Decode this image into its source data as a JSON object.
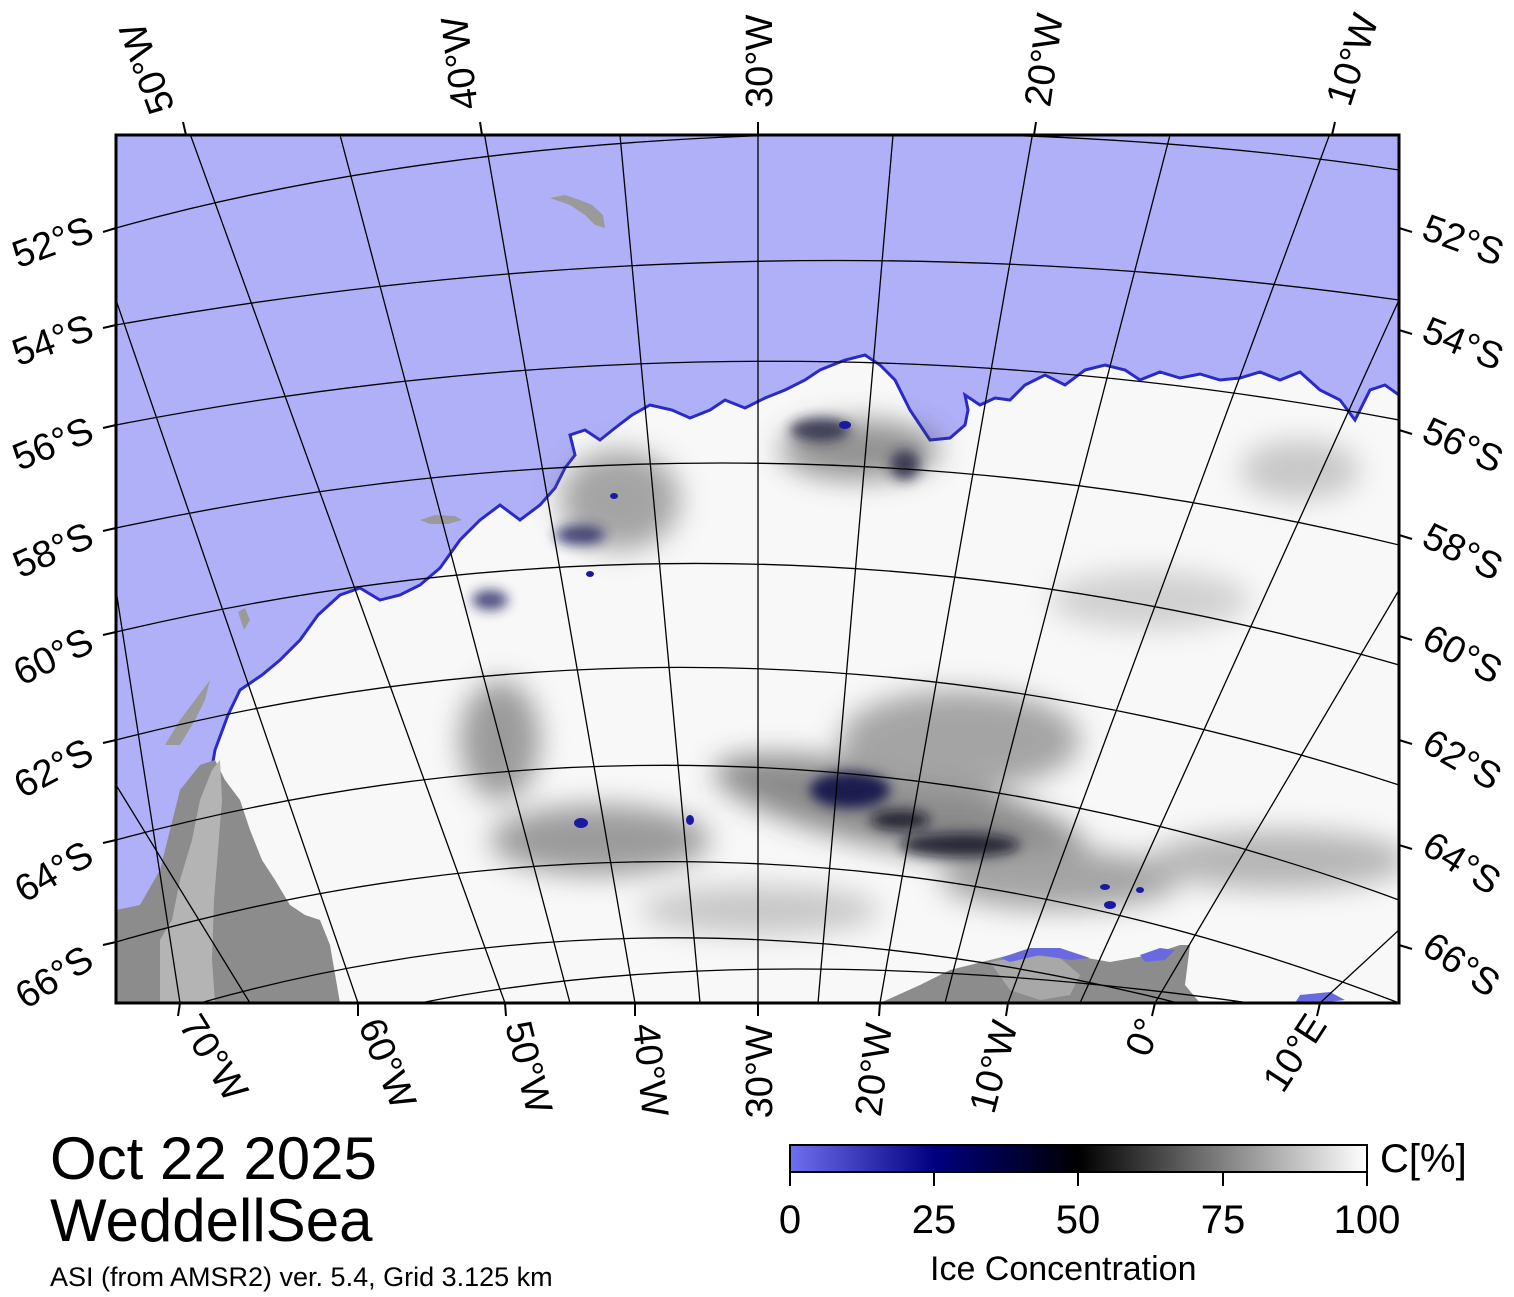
{
  "title": {
    "date": "Oct 22 2025",
    "region": "WeddellSea",
    "source": "ASI (from AMSR2) ver. 5.4,  Grid 3.125 km"
  },
  "top_lon_labels": [
    "50°W",
    "40°W",
    "30°W",
    "20°W",
    "10°W"
  ],
  "bottom_lon_labels": [
    "70°W",
    "60°W",
    "50°W",
    "40°W",
    "30°W",
    "20°W",
    "10°W",
    "0°",
    "10°E"
  ],
  "left_lat_labels": [
    "52°S",
    "54°S",
    "56°S",
    "58°S",
    "60°S",
    "62°S",
    "64°S",
    "66°S"
  ],
  "right_lat_labels": [
    "52°S",
    "54°S",
    "56°S",
    "58°S",
    "60°S",
    "62°S",
    "64°S",
    "66°S"
  ],
  "colorbar": {
    "title": "Ice Concentration",
    "unit": "C[%]",
    "ticks": [
      "0",
      "25",
      "50",
      "75",
      "100"
    ],
    "colors": [
      "#6f6ff0",
      "#000080",
      "#000000",
      "#808080",
      "#ffffff"
    ]
  },
  "colors": {
    "open_water": "#b0b0f8",
    "land": "#8c8c8c",
    "land_light": "#b0b0b0",
    "ice_full": "#ffffff",
    "ice_edge": "#2020c0"
  }
}
